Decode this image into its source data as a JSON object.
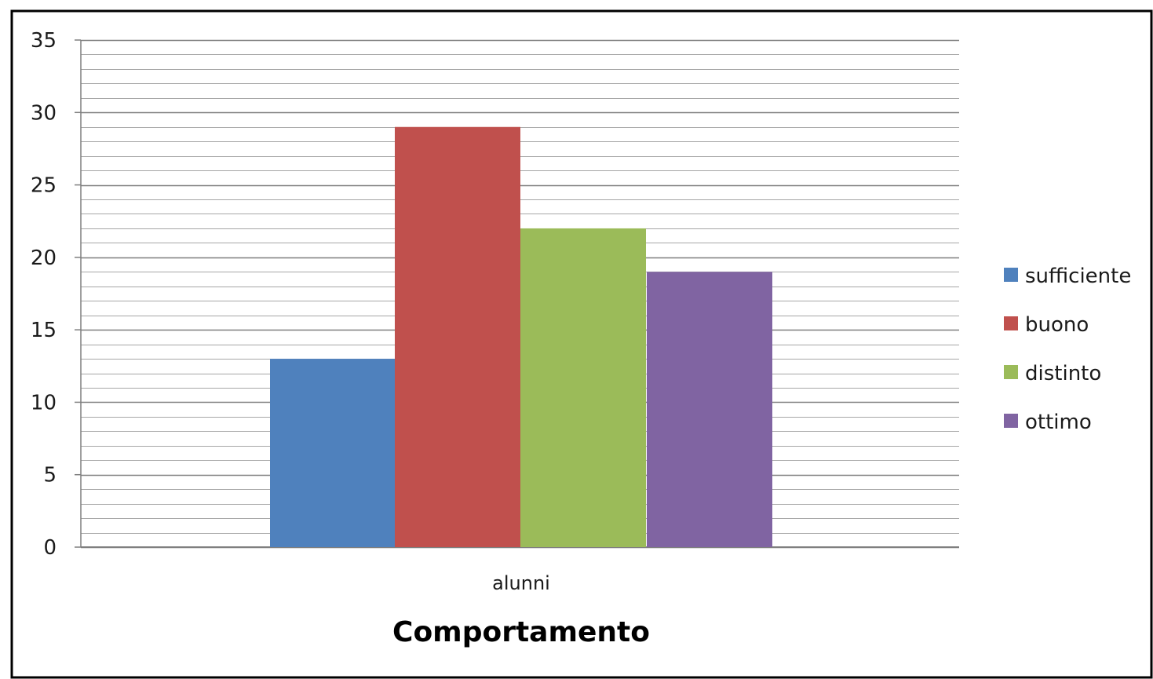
{
  "chart_data": {
    "type": "bar",
    "title": "Comportamento",
    "xlabel": "",
    "ylabel": "",
    "categories": [
      "alunni"
    ],
    "series": [
      {
        "name": "sufficiente",
        "values": [
          13
        ],
        "color": "#4f81bd"
      },
      {
        "name": "buono",
        "values": [
          29
        ],
        "color": "#c0504d"
      },
      {
        "name": "distinto",
        "values": [
          22
        ],
        "color": "#9bbb59"
      },
      {
        "name": "ottimo",
        "values": [
          19
        ],
        "color": "#8064a2"
      }
    ],
    "ylim": [
      0,
      35
    ],
    "yticks": [
      "0",
      "5",
      "10",
      "15",
      "20",
      "25",
      "30",
      "35"
    ],
    "ytick_values": [
      0,
      5,
      10,
      15,
      20,
      25,
      30,
      35
    ],
    "minor_grid_step": 1,
    "grid": true,
    "legend": "right"
  }
}
